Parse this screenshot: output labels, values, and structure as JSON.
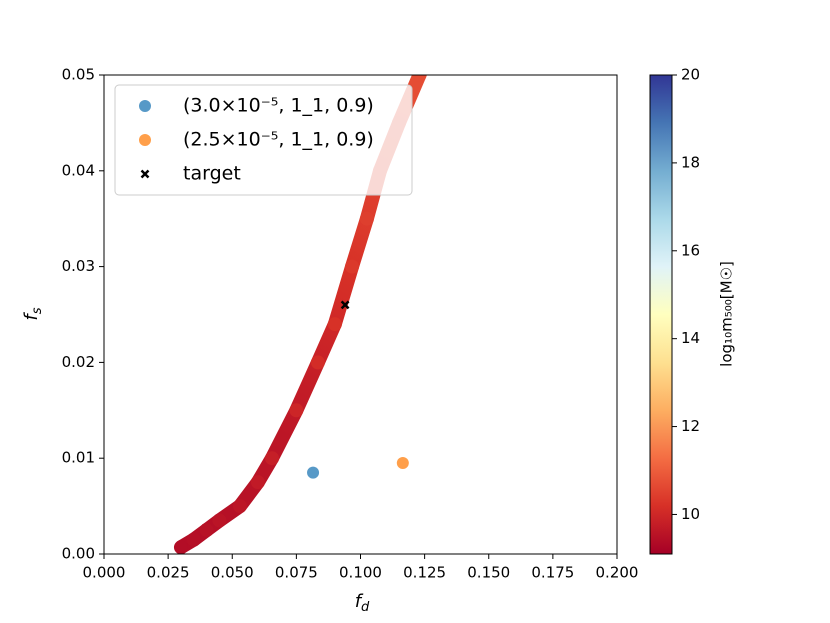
{
  "chart_data": {
    "type": "scatter",
    "xlabel": {
      "base": "f",
      "sub": "d"
    },
    "ylabel": {
      "base": "f",
      "sub": "s"
    },
    "xlim": [
      0,
      0.2
    ],
    "ylim": [
      0,
      0.05
    ],
    "xticks": [
      {
        "value": 0,
        "label": "0.000"
      },
      0.025,
      {
        "value": 0.05,
        "label": "0.050"
      },
      0.075,
      {
        "value": 0.1,
        "label": "0.100"
      },
      0.125,
      {
        "value": 0.15,
        "label": "0.150"
      },
      0.175,
      {
        "value": 0.2,
        "label": "0.200"
      }
    ],
    "yticks": [
      {
        "value": 0,
        "label": "0.00"
      },
      0.01,
      0.02,
      0.03,
      0.04,
      0.05
    ],
    "colormap": [
      "#a50026",
      "#d73027",
      "#f46d43",
      "#fdae61",
      "#fee090",
      "#ffffbf",
      "#e0f3f8",
      "#abd9e9",
      "#74add1",
      "#4575b4",
      "#313695"
    ],
    "clim": [
      9.1,
      20
    ],
    "cticks": [
      10,
      12,
      14,
      16,
      18,
      20
    ],
    "clabel": "log₁₀m₅₀₀[M☉]",
    "legend": "upper left",
    "series": [
      {
        "x": [
          0.03,
          0.035,
          0.04,
          0.045,
          0.053,
          0.06,
          0.0655,
          0.075,
          0.0834,
          0.09,
          0.0967,
          0.1025,
          0.1076,
          0.115,
          0.123,
          0.125
        ],
        "values": [
          0.0007,
          0.0015,
          0.0025,
          0.0035,
          0.005,
          0.0075,
          0.01,
          0.015,
          0.02,
          0.024,
          0.03,
          0.035,
          0.04,
          0.045,
          0.05,
          0.0515
        ],
        "c": [
          9.4,
          9.45,
          9.5,
          9.55,
          9.6,
          9.7,
          9.8,
          9.95,
          10.1,
          10.2,
          10.35,
          10.45,
          10.55,
          10.6,
          10.7,
          10.7
        ]
      },
      {
        "name": "(3.0×10⁻⁵, 1_1, 0.9)",
        "color": "#1f77b4",
        "marker": "o",
        "x": [
          0.0815
        ],
        "values": [
          0.0085
        ]
      },
      {
        "name": "(2.5×10⁻⁵, 1_1, 0.9)",
        "color": "#ff7f0e",
        "marker": "o",
        "x": [
          0.1165
        ],
        "values": [
          0.0095
        ]
      },
      {
        "name": "target",
        "color": "#000000",
        "marker": "x",
        "x": [
          0.094
        ],
        "values": [
          0.026
        ]
      }
    ]
  }
}
